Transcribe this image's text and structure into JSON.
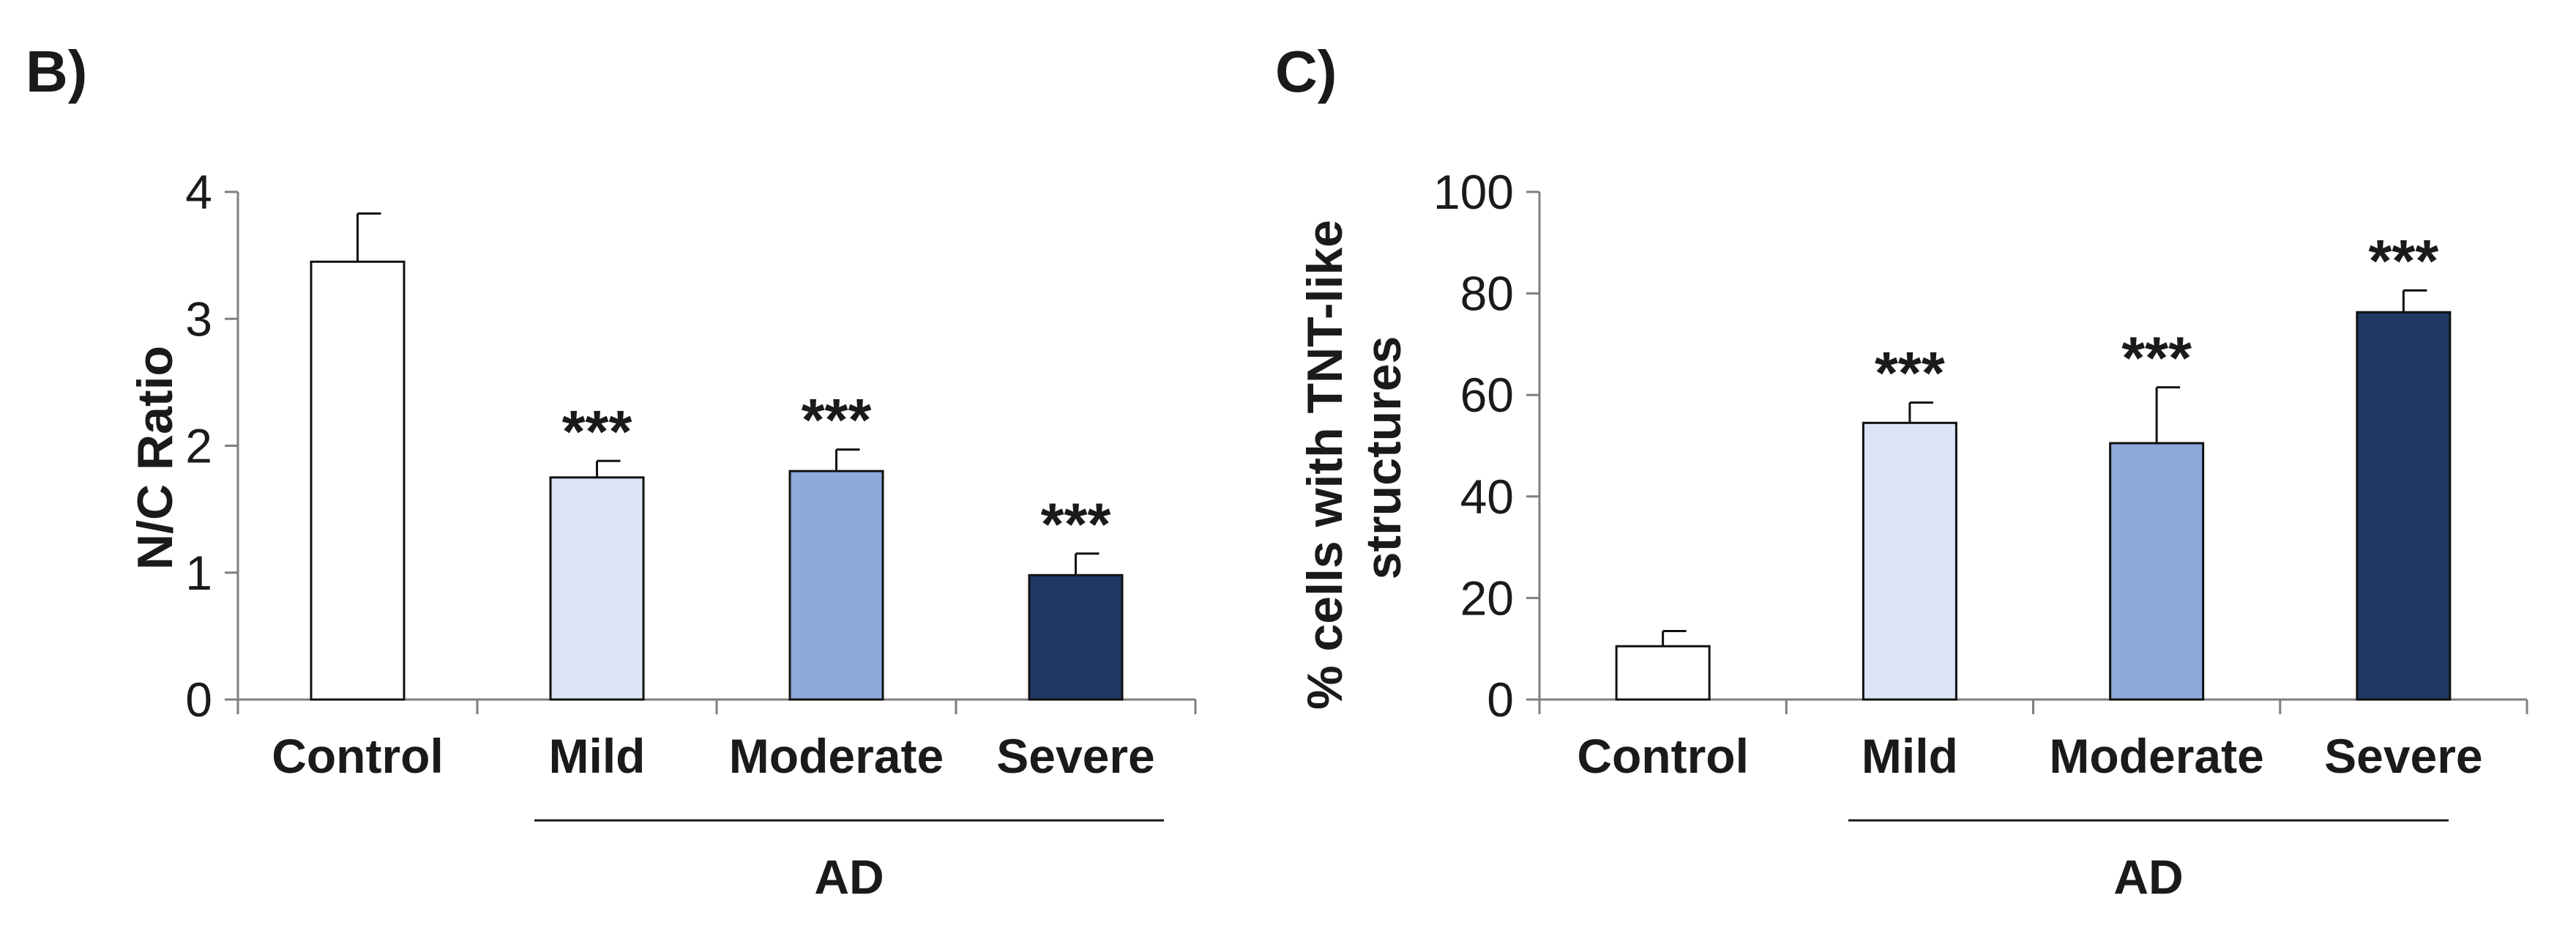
{
  "chart_data": [
    {
      "type": "bar",
      "panel_label": "B)",
      "ylabel_lines": [
        "N/C Ratio"
      ],
      "ylim": [
        0,
        4
      ],
      "yticks": [
        0,
        1,
        2,
        3,
        4
      ],
      "ytick_labels": [
        "0",
        "1",
        "2",
        "3",
        "4"
      ],
      "categories": [
        "Control",
        "Mild",
        "Moderate",
        "Severe"
      ],
      "values": [
        3.45,
        1.75,
        1.8,
        0.98
      ],
      "errors": [
        0.38,
        0.13,
        0.17,
        0.17
      ],
      "colors": [
        "#ffffff",
        "#dbe5f5",
        "#8eaadd",
        "#1f3864"
      ],
      "annotations": [
        "",
        "***",
        "***",
        "***"
      ],
      "group_label": "AD",
      "grid": false
    },
    {
      "type": "bar",
      "panel_label": "C)",
      "ylabel_lines": [
        "% cells with TNT-like",
        "structures"
      ],
      "ylim": [
        0,
        100
      ],
      "yticks": [
        0,
        20,
        40,
        60,
        80,
        100
      ],
      "ytick_labels": [
        "0",
        "20",
        "40",
        "60",
        "80",
        "100"
      ],
      "categories": [
        "Control",
        "Mild",
        "Moderate",
        "Severe"
      ],
      "values": [
        10.5,
        54.5,
        50.5,
        76.3
      ],
      "errors": [
        3.0,
        4.0,
        11.0,
        4.3
      ],
      "colors": [
        "#ffffff",
        "#dbe5f5",
        "#8eaadd",
        "#1f3864"
      ],
      "annotations": [
        "",
        "***",
        "***",
        "***"
      ],
      "group_label": "AD",
      "grid": false
    }
  ]
}
